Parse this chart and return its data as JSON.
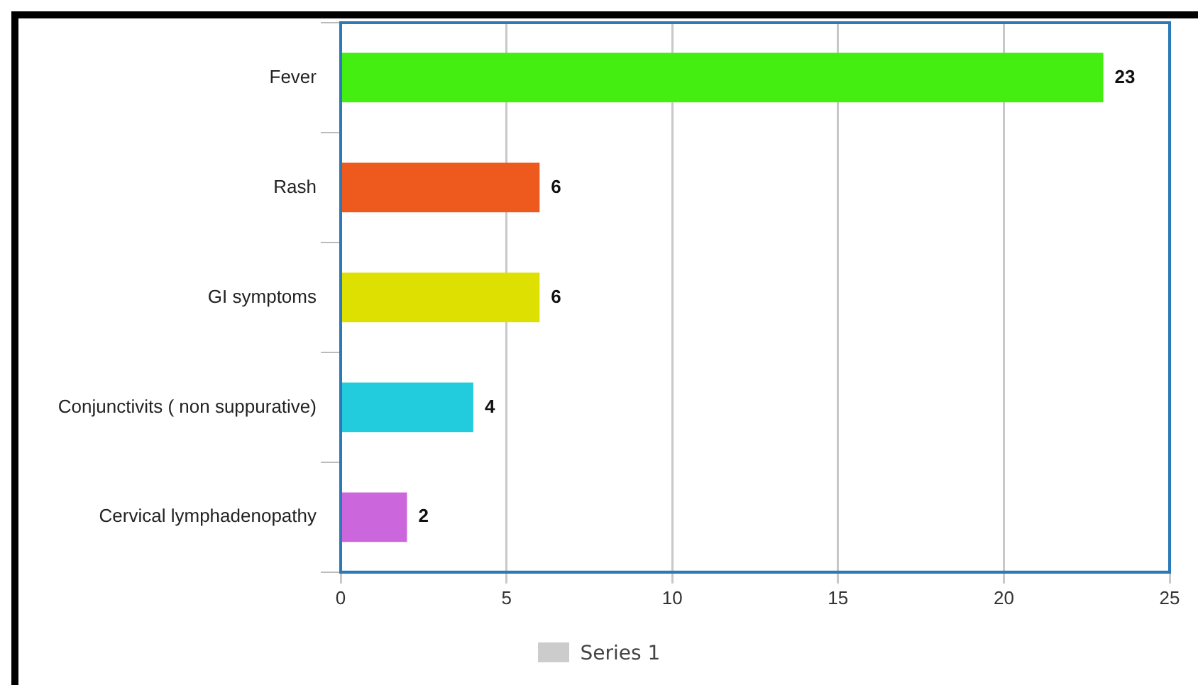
{
  "chart_data": {
    "type": "bar",
    "orientation": "horizontal",
    "categories": [
      "Fever",
      "Rash",
      "GI symptoms",
      "Conjunctivits ( non suppurative)",
      "Cervical lymphadenopathy"
    ],
    "series": [
      {
        "name": "Series 1",
        "color": "#cccccc",
        "colors": [
          "#44ee11",
          "#ee5a1e",
          "#dde000",
          "#22ccdd",
          "#cc66dd"
        ],
        "values": [
          23,
          6,
          6,
          4,
          2
        ]
      }
    ],
    "xlim": [
      0,
      25
    ],
    "xticks": [
      0,
      5,
      10,
      15,
      20,
      25
    ],
    "grid": "x",
    "legend": "bottom",
    "data_labels": true
  }
}
